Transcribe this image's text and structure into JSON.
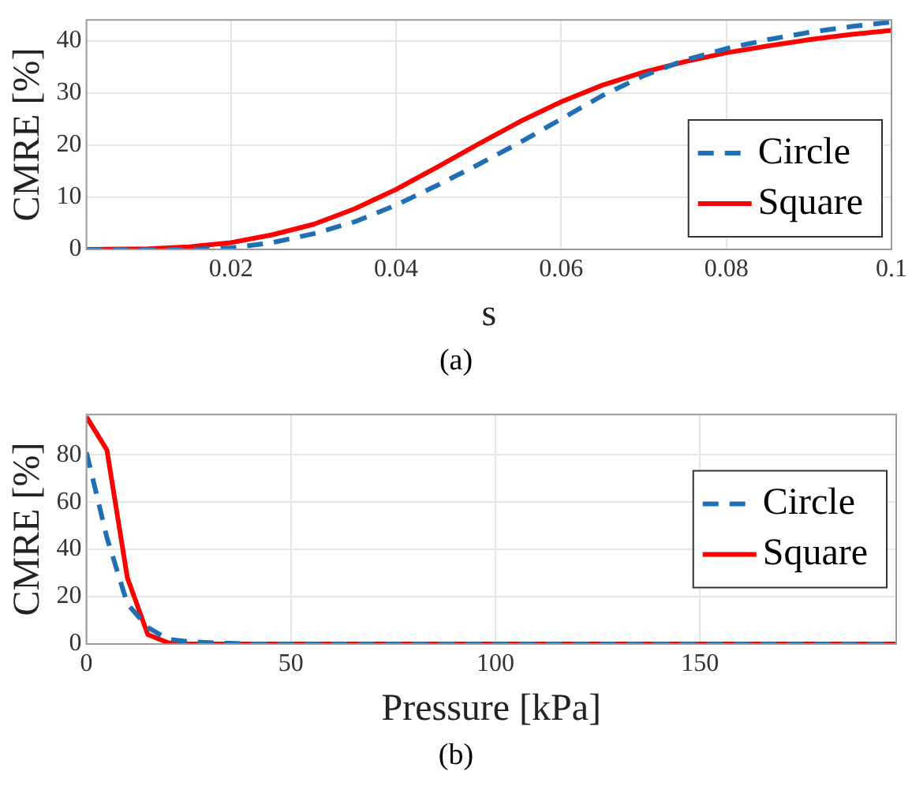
{
  "chart_data": [
    {
      "type": "line",
      "xlabel": "s",
      "ylabel": "CMRE [%]",
      "annotations": [
        "(a)"
      ],
      "xlim": [
        0.0025,
        0.1
      ],
      "xticks": [
        0.02,
        0.04,
        0.06,
        0.08,
        0.1
      ],
      "ylim": [
        0,
        44
      ],
      "yticks": [
        0,
        10,
        20,
        30,
        40
      ],
      "grid": true,
      "legend": "bottom right",
      "x": [
        0.0025,
        0.01,
        0.015,
        0.02,
        0.025,
        0.03,
        0.035,
        0.04,
        0.045,
        0.05,
        0.055,
        0.06,
        0.065,
        0.07,
        0.075,
        0.08,
        0.085,
        0.09,
        0.095,
        0.1
      ],
      "series": [
        {
          "name": "Circle",
          "color": "#1f6fb5",
          "line_style": "dashed",
          "values": [
            0,
            0,
            0,
            0.3,
            1.3,
            3,
            5.3,
            8.5,
            12.3,
            16.3,
            20.5,
            25,
            29.5,
            33.3,
            36.3,
            38.5,
            40.2,
            41.6,
            42.7,
            43.6
          ]
        },
        {
          "name": "Square",
          "color": "#ff0000",
          "line_style": "solid",
          "values": [
            0,
            0.1,
            0.5,
            1.3,
            2.8,
            4.8,
            7.8,
            11.5,
            15.8,
            20.2,
            24.5,
            28.3,
            31.5,
            34,
            36,
            37.7,
            39,
            40.2,
            41.2,
            42
          ]
        }
      ]
    },
    {
      "type": "line",
      "xlabel": "Pressure [kPa]",
      "ylabel": "CMRE [%]",
      "annotations": [
        "(b)"
      ],
      "xlim": [
        0,
        198
      ],
      "xticks": [
        0,
        50,
        100,
        150
      ],
      "ylim": [
        0,
        97
      ],
      "yticks": [
        0,
        20,
        40,
        60,
        80
      ],
      "grid": true,
      "legend": "right",
      "x": [
        0,
        5,
        10,
        15,
        20,
        25,
        30,
        35,
        40,
        50,
        100,
        150,
        198
      ],
      "series": [
        {
          "name": "Circle",
          "color": "#1f6fb5",
          "line_style": "dashed",
          "values": [
            81,
            45,
            17,
            7,
            2,
            1,
            0.6,
            0.3,
            0,
            0,
            0,
            0,
            0
          ]
        },
        {
          "name": "Square",
          "color": "#ff0000",
          "line_style": "solid",
          "values": [
            96,
            82,
            28,
            4,
            0.5,
            0,
            0,
            0,
            0,
            0,
            0,
            0,
            0
          ]
        }
      ]
    }
  ]
}
